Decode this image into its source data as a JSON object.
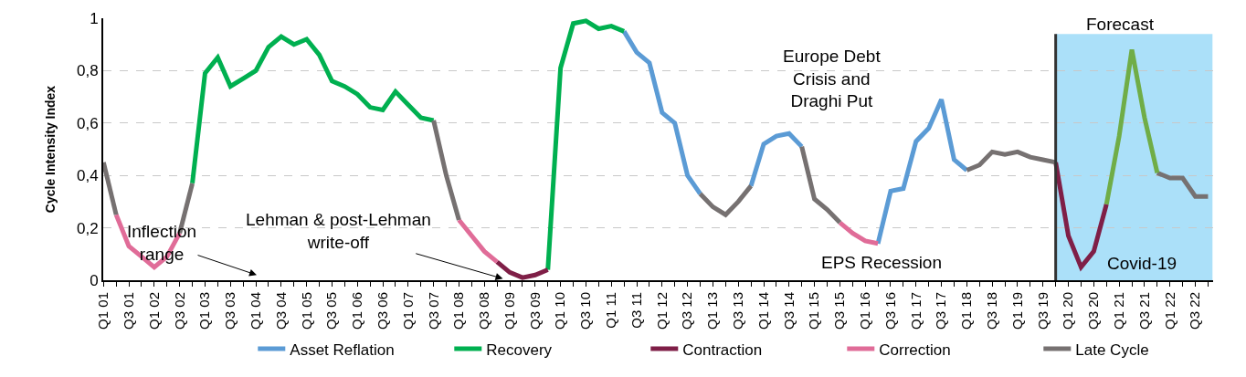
{
  "chart_data": {
    "type": "line",
    "ylabel": "Cycle Intensity Index",
    "ylim": [
      0,
      1
    ],
    "yticks": [
      0,
      {
        "value": 0.2,
        "label": "0,2"
      },
      {
        "value": 0.4,
        "label": "0,4"
      },
      {
        "value": 0.6,
        "label": "0,6"
      },
      {
        "value": 0.8,
        "label": "0,8"
      },
      1
    ],
    "categories": [
      "Q1 01",
      null,
      "Q3 01",
      null,
      "Q1 02",
      null,
      "Q3 02",
      null,
      "Q1 03",
      null,
      "Q3 03",
      null,
      "Q1 04",
      null,
      "Q3 04",
      null,
      "Q1 05",
      null,
      "Q3 05",
      null,
      "Q1 06",
      null,
      "Q3 06",
      null,
      "Q1 07",
      null,
      "Q3 07",
      null,
      "Q1 08",
      null,
      "Q3 08",
      null,
      "Q1 09",
      null,
      "Q3 09",
      null,
      "Q1 10",
      null,
      "Q3 10",
      null,
      "Q1 11",
      null,
      "Q3 11",
      null,
      "Q1 12",
      null,
      "Q3 12",
      null,
      "Q1 13",
      null,
      "Q3 13",
      null,
      "Q1 14",
      null,
      "Q3 14",
      null,
      "Q1 15",
      null,
      "Q3 15",
      null,
      "Q1 16",
      null,
      "Q3 16",
      null,
      "Q1 17",
      null,
      "Q3 17",
      null,
      "Q1 18",
      null,
      "Q3 18",
      null,
      "Q1 19",
      null,
      "Q3 19",
      null,
      "Q1 20",
      null,
      "Q3 20",
      null,
      "Q1 21",
      null,
      "Q3 21",
      null,
      "Q1 22",
      null,
      "Q3 22",
      null
    ],
    "series": [
      {
        "name": "Asset Reflation",
        "color": "#5b9bd5",
        "values": [
          null,
          null,
          null,
          null,
          null,
          null,
          null,
          null,
          null,
          null,
          null,
          null,
          null,
          null,
          null,
          null,
          null,
          null,
          null,
          null,
          null,
          null,
          null,
          null,
          null,
          null,
          null,
          null,
          null,
          null,
          null,
          null,
          null,
          null,
          null,
          null,
          null,
          null,
          null,
          null,
          null,
          0.95,
          0.87,
          0.83,
          0.64,
          0.6,
          0.4,
          0.33,
          null,
          null,
          null,
          0.36,
          0.52,
          0.55,
          0.56,
          0.51,
          null,
          null,
          null,
          null,
          null,
          0.14,
          0.34,
          0.35,
          0.53,
          0.58,
          0.69,
          0.46,
          0.42,
          null,
          null,
          null,
          null,
          null,
          null,
          null,
          null,
          null,
          null,
          null,
          null,
          null,
          null,
          null,
          null,
          null,
          null,
          null
        ]
      },
      {
        "name": "Recovery",
        "color": "#00b050",
        "values": [
          null,
          null,
          null,
          null,
          null,
          null,
          null,
          0.37,
          0.79,
          0.85,
          0.74,
          0.77,
          0.8,
          0.89,
          0.93,
          0.9,
          0.92,
          0.86,
          0.76,
          0.74,
          0.71,
          0.66,
          0.65,
          0.72,
          0.67,
          0.62,
          0.61,
          null,
          null,
          null,
          null,
          null,
          null,
          null,
          null,
          0.04,
          0.81,
          0.98,
          0.99,
          0.96,
          0.97,
          0.95,
          null,
          null,
          null,
          null,
          null,
          null,
          null,
          null,
          null,
          null,
          null,
          null,
          null,
          null,
          null,
          null,
          null,
          null,
          null,
          null,
          null,
          null,
          null,
          null,
          null,
          null,
          null,
          null,
          null,
          null,
          null,
          null,
          null,
          null,
          null,
          null,
          null,
          null,
          null,
          null,
          null,
          null,
          null,
          null,
          null,
          null
        ]
      },
      {
        "name": "Contraction",
        "color": "#7f1f47",
        "values": [
          null,
          null,
          null,
          null,
          null,
          null,
          null,
          null,
          null,
          null,
          null,
          null,
          null,
          null,
          null,
          null,
          null,
          null,
          null,
          null,
          null,
          null,
          null,
          null,
          null,
          null,
          null,
          null,
          null,
          null,
          null,
          0.07,
          0.03,
          0.01,
          0.02,
          0.04,
          null,
          null,
          null,
          null,
          null,
          null,
          null,
          null,
          null,
          null,
          null,
          null,
          null,
          null,
          null,
          null,
          null,
          null,
          null,
          null,
          null,
          null,
          null,
          null,
          null,
          null,
          null,
          null,
          null,
          null,
          null,
          null,
          null,
          null,
          null,
          null,
          null,
          null,
          null,
          0.45,
          0.17,
          0.05,
          0.11,
          0.29,
          null,
          null,
          null,
          null,
          null,
          null,
          null,
          null
        ]
      },
      {
        "name": "Correction",
        "color": "#e06c98",
        "values": [
          null,
          0.25,
          0.13,
          0.09,
          0.05,
          0.09,
          0.18,
          null,
          null,
          null,
          null,
          null,
          null,
          null,
          null,
          null,
          null,
          null,
          null,
          null,
          null,
          null,
          null,
          null,
          null,
          null,
          null,
          null,
          0.23,
          0.17,
          0.11,
          0.07,
          null,
          null,
          null,
          null,
          null,
          null,
          null,
          null,
          null,
          null,
          null,
          null,
          null,
          null,
          null,
          null,
          null,
          null,
          null,
          null,
          null,
          null,
          null,
          null,
          null,
          null,
          0.22,
          0.18,
          0.15,
          0.14,
          null,
          null,
          null,
          null,
          null,
          null,
          null,
          null,
          null,
          null,
          null,
          null,
          null,
          null,
          null,
          null,
          null,
          null,
          null,
          null,
          null,
          null,
          null,
          null,
          null,
          null
        ]
      },
      {
        "name": "Late Cycle",
        "color": "#767171",
        "values": [
          0.45,
          0.25,
          null,
          null,
          null,
          null,
          0.18,
          0.37,
          null,
          null,
          null,
          null,
          null,
          null,
          null,
          null,
          null,
          null,
          null,
          null,
          null,
          null,
          null,
          null,
          null,
          null,
          0.61,
          0.4,
          0.23,
          null,
          null,
          null,
          null,
          null,
          null,
          null,
          null,
          null,
          null,
          null,
          null,
          null,
          null,
          null,
          null,
          null,
          null,
          0.33,
          0.28,
          0.25,
          0.3,
          0.36,
          null,
          null,
          null,
          0.51,
          0.31,
          0.27,
          0.22,
          null,
          null,
          null,
          null,
          null,
          null,
          null,
          null,
          null,
          0.42,
          0.44,
          0.49,
          0.48,
          0.49,
          0.47,
          0.46,
          0.45,
          null,
          null,
          null,
          null,
          null,
          null,
          null,
          0.41,
          0.39,
          0.39,
          0.32,
          0.32
        ]
      },
      {
        "color": "#70ad47",
        "values": [
          null,
          null,
          null,
          null,
          null,
          null,
          null,
          null,
          null,
          null,
          null,
          null,
          null,
          null,
          null,
          null,
          null,
          null,
          null,
          null,
          null,
          null,
          null,
          null,
          null,
          null,
          null,
          null,
          null,
          null,
          null,
          null,
          null,
          null,
          null,
          null,
          null,
          null,
          null,
          null,
          null,
          null,
          null,
          null,
          null,
          null,
          null,
          null,
          null,
          null,
          null,
          null,
          null,
          null,
          null,
          null,
          null,
          null,
          null,
          null,
          null,
          null,
          null,
          null,
          null,
          null,
          null,
          null,
          null,
          null,
          null,
          null,
          null,
          null,
          null,
          null,
          null,
          null,
          null,
          0.29,
          0.55,
          0.88,
          0.62,
          0.41,
          null,
          null,
          null,
          null
        ]
      }
    ],
    "annotations": [
      "Inflection range",
      "Lehman & post-Lehman write-off",
      "Europe Debt Crisis and Draghi Put",
      "EPS Recession",
      "Forecast",
      "Covid-19"
    ],
    "grid": "y",
    "legend": "bottom",
    "marker": "none",
    "line_style": "solid"
  }
}
